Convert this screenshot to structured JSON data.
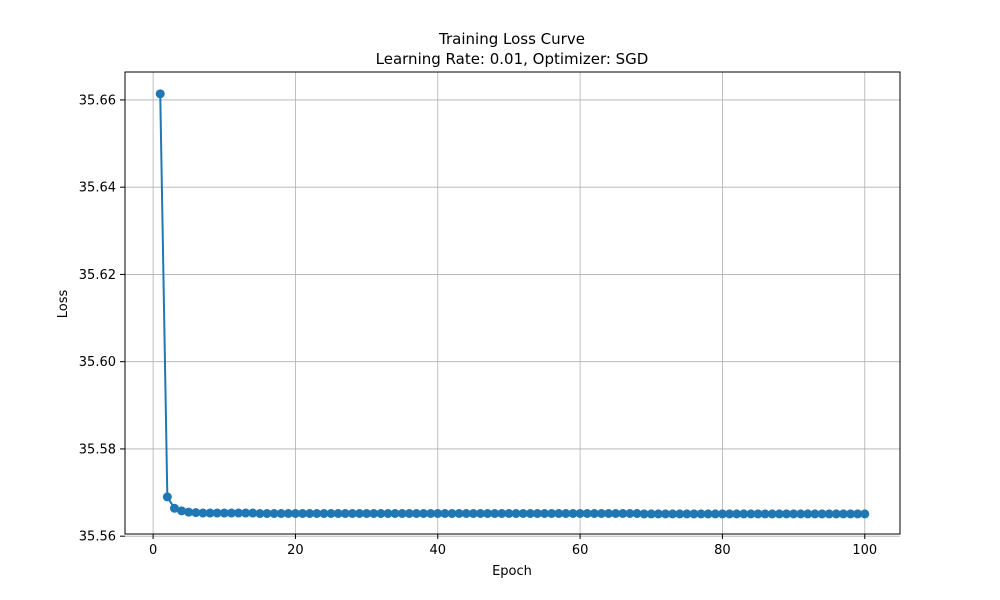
{
  "chart_data": {
    "type": "line",
    "title": "Training Loss Curve",
    "subtitle": "Learning Rate: 0.01, Optimizer: SGD",
    "xlabel": "Epoch",
    "ylabel": "Loss",
    "xlim": [
      -3.95,
      104.95
    ],
    "ylim": [
      35.5605,
      35.6664
    ],
    "xticks": [
      0,
      20,
      40,
      60,
      80,
      100
    ],
    "yticks": [
      35.56,
      35.58,
      35.6,
      35.62,
      35.64,
      35.66
    ],
    "xtick_labels": [
      "0",
      "20",
      "40",
      "60",
      "80",
      "100"
    ],
    "ytick_labels": [
      "35.56",
      "35.58",
      "35.60",
      "35.62",
      "35.64",
      "35.66"
    ],
    "grid": true,
    "legend": false,
    "line_color": "#1f77b4",
    "marker": "circle",
    "x": [
      1,
      2,
      3,
      4,
      5,
      6,
      7,
      8,
      9,
      10,
      11,
      12,
      13,
      14,
      15,
      16,
      17,
      18,
      19,
      20,
      21,
      22,
      23,
      24,
      25,
      26,
      27,
      28,
      29,
      30,
      31,
      32,
      33,
      34,
      35,
      36,
      37,
      38,
      39,
      40,
      41,
      42,
      43,
      44,
      45,
      46,
      47,
      48,
      49,
      50,
      51,
      52,
      53,
      54,
      55,
      56,
      57,
      58,
      59,
      60,
      61,
      62,
      63,
      64,
      65,
      66,
      67,
      68,
      69,
      70,
      71,
      72,
      73,
      74,
      75,
      76,
      77,
      78,
      79,
      80,
      81,
      82,
      83,
      84,
      85,
      86,
      87,
      88,
      89,
      90,
      91,
      92,
      93,
      94,
      95,
      96,
      97,
      98,
      99,
      100
    ],
    "y": [
      35.6614,
      35.569,
      35.5664,
      35.5658,
      35.5655,
      35.5654,
      35.5653,
      35.5653,
      35.5653,
      35.5653,
      35.5653,
      35.5653,
      35.5653,
      35.5653,
      35.5652,
      35.5652,
      35.5652,
      35.5652,
      35.5652,
      35.5652,
      35.5652,
      35.5652,
      35.5652,
      35.5652,
      35.5652,
      35.5652,
      35.5652,
      35.5652,
      35.5652,
      35.5652,
      35.5652,
      35.5652,
      35.5652,
      35.5652,
      35.5652,
      35.5652,
      35.5652,
      35.5652,
      35.5652,
      35.5652,
      35.5652,
      35.5652,
      35.5652,
      35.5652,
      35.5652,
      35.5652,
      35.5652,
      35.5652,
      35.5652,
      35.5652,
      35.5652,
      35.5652,
      35.5652,
      35.5652,
      35.5652,
      35.5652,
      35.5652,
      35.5652,
      35.5652,
      35.5652,
      35.5652,
      35.5652,
      35.5652,
      35.5652,
      35.5652,
      35.5652,
      35.5652,
      35.5652,
      35.5651,
      35.5651,
      35.5651,
      35.5651,
      35.5651,
      35.5651,
      35.5651,
      35.5651,
      35.5651,
      35.5651,
      35.5651,
      35.5651,
      35.5651,
      35.5651,
      35.5651,
      35.5651,
      35.5651,
      35.5651,
      35.5651,
      35.5651,
      35.5651,
      35.5651,
      35.5651,
      35.5651,
      35.5651,
      35.5651,
      35.5651,
      35.5651,
      35.5651,
      35.5651,
      35.5651,
      35.5651
    ]
  }
}
